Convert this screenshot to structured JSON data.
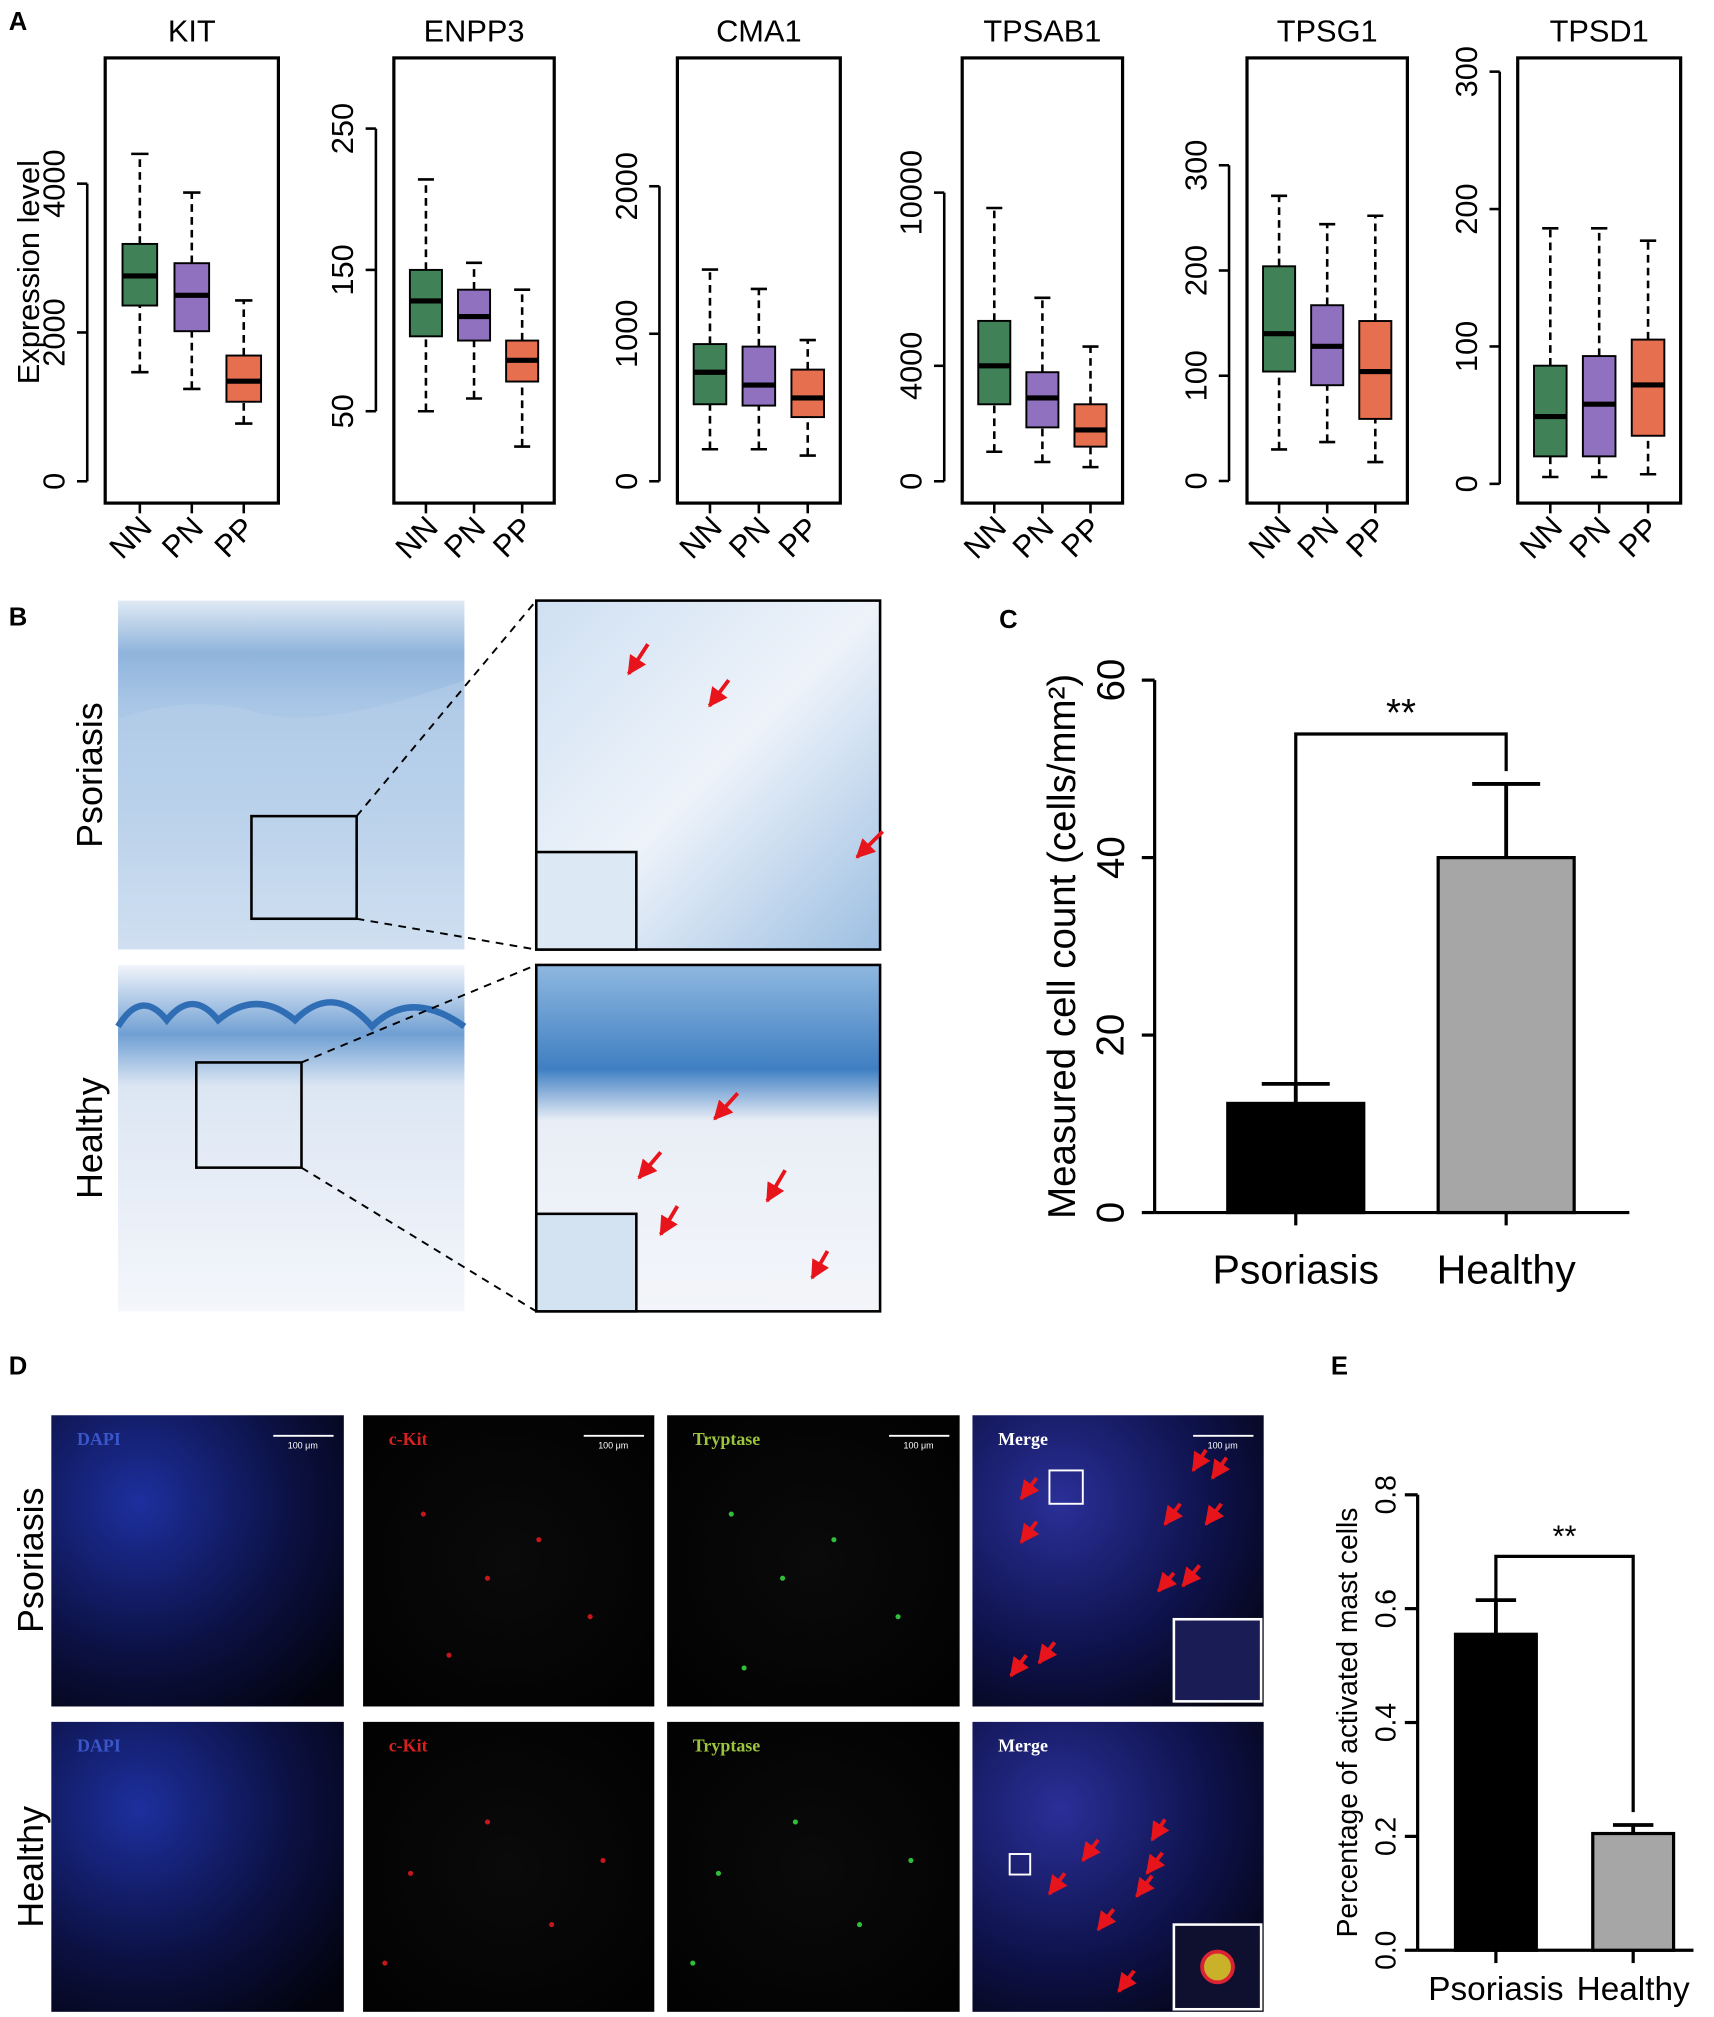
{
  "panel_labels": [
    "A",
    "B",
    "C",
    "D",
    "E"
  ],
  "chart_data": [
    {
      "type": "box",
      "title": "KIT",
      "y_label": "Expression level",
      "categories": [
        "NN",
        "PN",
        "PP"
      ],
      "colors": [
        "#1f6b3a",
        "#7b58b5",
        "#e0562f"
      ],
      "min": [
        1466,
        1241,
        776
      ],
      "q1": [
        2362,
        2017,
        1069
      ],
      "median": [
        2760,
        2500,
        1345
      ],
      "q3": [
        3190,
        2931,
        1690
      ],
      "max": [
        4400,
        3880,
        2431
      ],
      "ylim": [
        -293,
        5690
      ],
      "yticks": [
        0,
        2000,
        4000
      ]
    },
    {
      "type": "box",
      "title": "ENPP3",
      "categories": [
        "NN",
        "PN",
        "PP"
      ],
      "colors": [
        "#1f6b3a",
        "#7b58b5",
        "#e0562f"
      ],
      "min": [
        50,
        59,
        25
      ],
      "q1": [
        103,
        100,
        71
      ],
      "median": [
        128,
        117,
        86
      ],
      "q3": [
        150,
        136,
        100
      ],
      "max": [
        214,
        155,
        136
      ],
      "ylim": [
        -15,
        300
      ],
      "yticks": [
        50,
        150,
        250
      ]
    },
    {
      "type": "box",
      "title": "CMA1",
      "categories": [
        "NN",
        "PN",
        "PP"
      ],
      "colors": [
        "#1f6b3a",
        "#7b58b5",
        "#e0562f"
      ],
      "min": [
        217,
        217,
        174
      ],
      "q1": [
        522,
        513,
        435
      ],
      "median": [
        739,
        652,
        565
      ],
      "q3": [
        930,
        913,
        757
      ],
      "max": [
        1435,
        1304,
        957
      ],
      "ylim": [
        -148,
        2870
      ],
      "yticks": [
        0,
        1000,
        2000
      ]
    },
    {
      "type": "box",
      "title": "TPSAB1",
      "categories": [
        "NN",
        "PN",
        "PP"
      ],
      "colors": [
        "#1f6b3a",
        "#7b58b5",
        "#e0562f"
      ],
      "min": [
        1022,
        667,
        489
      ],
      "q1": [
        2667,
        1867,
        1200
      ],
      "median": [
        4000,
        2889,
        1778
      ],
      "q3": [
        5556,
        3778,
        2667
      ],
      "max": [
        9467,
        6356,
        4667
      ],
      "ylim": [
        -756,
        14667
      ],
      "yticks": [
        0,
        4000,
        10000
      ]
    },
    {
      "type": "box",
      "title": "TPSG1",
      "categories": [
        "NN",
        "PN",
        "PP"
      ],
      "colors": [
        "#1f6b3a",
        "#7b58b5",
        "#e0562f"
      ],
      "min": [
        30,
        37,
        18
      ],
      "q1": [
        104,
        91,
        59
      ],
      "median": [
        140,
        128,
        104
      ],
      "q3": [
        204,
        167,
        152
      ],
      "max": [
        271,
        244,
        252
      ],
      "ylim": [
        -21,
        402
      ],
      "yticks": [
        0,
        100,
        200,
        300
      ]
    },
    {
      "type": "box",
      "title": "TPSD1",
      "categories": [
        "NN",
        "PN",
        "PP"
      ],
      "colors": [
        "#1f6b3a",
        "#7b58b5",
        "#e0562f"
      ],
      "min": [
        5,
        5,
        7
      ],
      "q1": [
        20,
        20,
        35
      ],
      "median": [
        49,
        58,
        72
      ],
      "q3": [
        86,
        93,
        105
      ],
      "max": [
        186,
        186,
        177
      ],
      "ylim": [
        -14,
        310
      ],
      "yticks": [
        0,
        100,
        200,
        300
      ]
    },
    {
      "type": "bar",
      "y_label": "Measured cell count (cells/mm²)",
      "categories": [
        "Psoriasis",
        "Healthy"
      ],
      "values": [
        12.3,
        40
      ],
      "errors": [
        2.2,
        8.3
      ],
      "colors": [
        "#000000",
        "#a6a6a6"
      ],
      "annotation": "**",
      "ylim": [
        0,
        60
      ],
      "yticks": [
        0,
        20,
        40,
        60
      ]
    },
    {
      "type": "bar",
      "y_label": "Percentage of activated mast cells",
      "categories": [
        "Psoriasis",
        "Healthy"
      ],
      "values": [
        0.555,
        0.205
      ],
      "errors": [
        0.06,
        0.015
      ],
      "colors": [
        "#000000",
        "#a6a6a6"
      ],
      "annotation": "**",
      "ylim": [
        0,
        0.8
      ],
      "yticks": [
        {
          "value": 0,
          "label": "0.0"
        },
        0.2,
        0.4,
        0.6,
        0.8
      ]
    }
  ],
  "histology": {
    "rows": [
      "Psoriasis",
      "Healthy"
    ]
  },
  "immunofluorescence": {
    "rows": [
      "Psoriasis",
      "Healthy"
    ],
    "channels": [
      "DAPI",
      "c-Kit",
      "Tryptase",
      "Merge"
    ],
    "scale_bar": "100 μm"
  }
}
